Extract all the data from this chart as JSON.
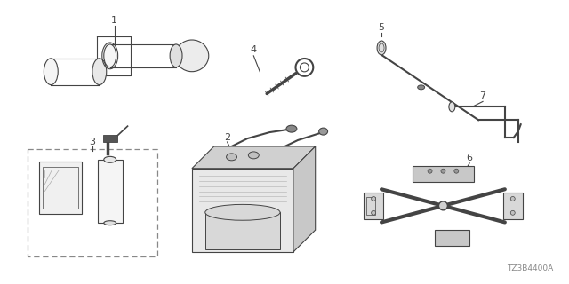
{
  "bg_color": "#ffffff",
  "line_color": "#444444",
  "label_color": "#222222",
  "part_number_text": "TZ3B4400A",
  "figsize": [
    6.4,
    3.2
  ],
  "dpi": 100
}
